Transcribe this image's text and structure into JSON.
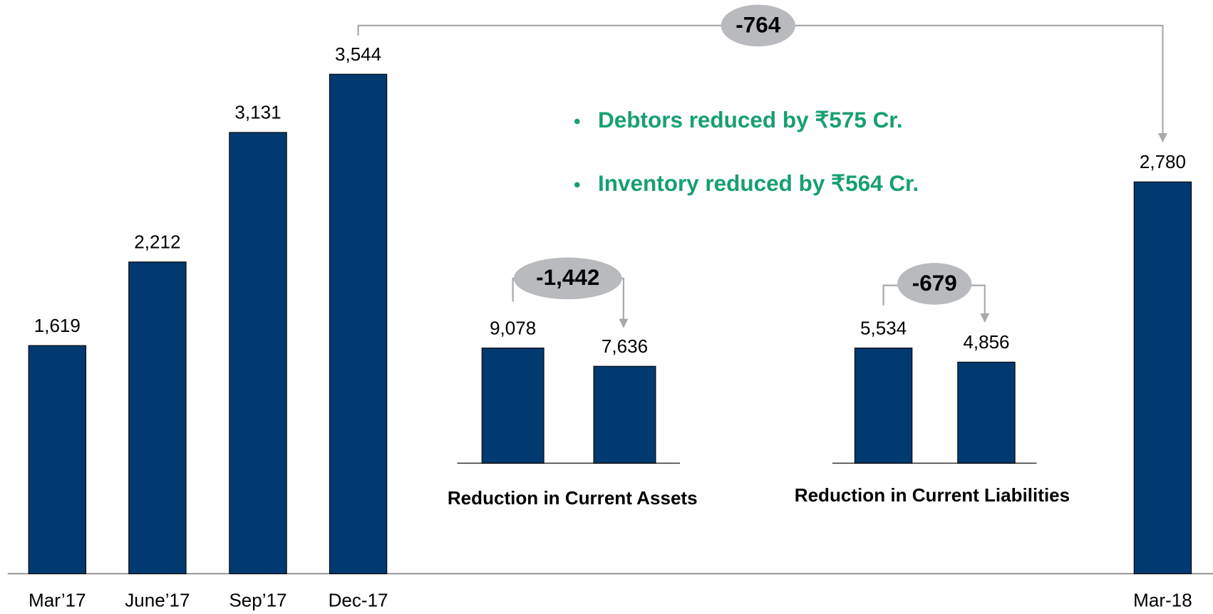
{
  "chart_data": [
    {
      "type": "bar",
      "categories": [
        "Mar’17",
        "June’17",
        "Sep’17",
        "Dec-17",
        "Mar-18"
      ],
      "values": [
        1619,
        2212,
        3131,
        3544,
        2780
      ],
      "value_labels": [
        "1,619",
        "2,212",
        "3,131",
        "3,544",
        "2,780"
      ],
      "color": "#003a70",
      "ylim": [
        0,
        4000
      ],
      "annotation": "-764",
      "annotations": [
        "Debtors reduced by ₹575 Cr.",
        "Inventory reduced by ₹564 Cr."
      ]
    },
    {
      "type": "bar",
      "title": "Reduction in Current Assets",
      "values": [
        9078,
        7636
      ],
      "value_labels": [
        "9,078",
        "7,636"
      ],
      "color": "#003a70",
      "ylim": [
        0,
        10000
      ],
      "annotation": "-1,442"
    },
    {
      "type": "bar",
      "title": "Reduction in Current Liabilities",
      "values": [
        5534,
        4856
      ],
      "value_labels": [
        "5,534",
        "4,856"
      ],
      "color": "#003a70",
      "ylim": [
        0,
        6000
      ],
      "annotation": "-679"
    }
  ]
}
